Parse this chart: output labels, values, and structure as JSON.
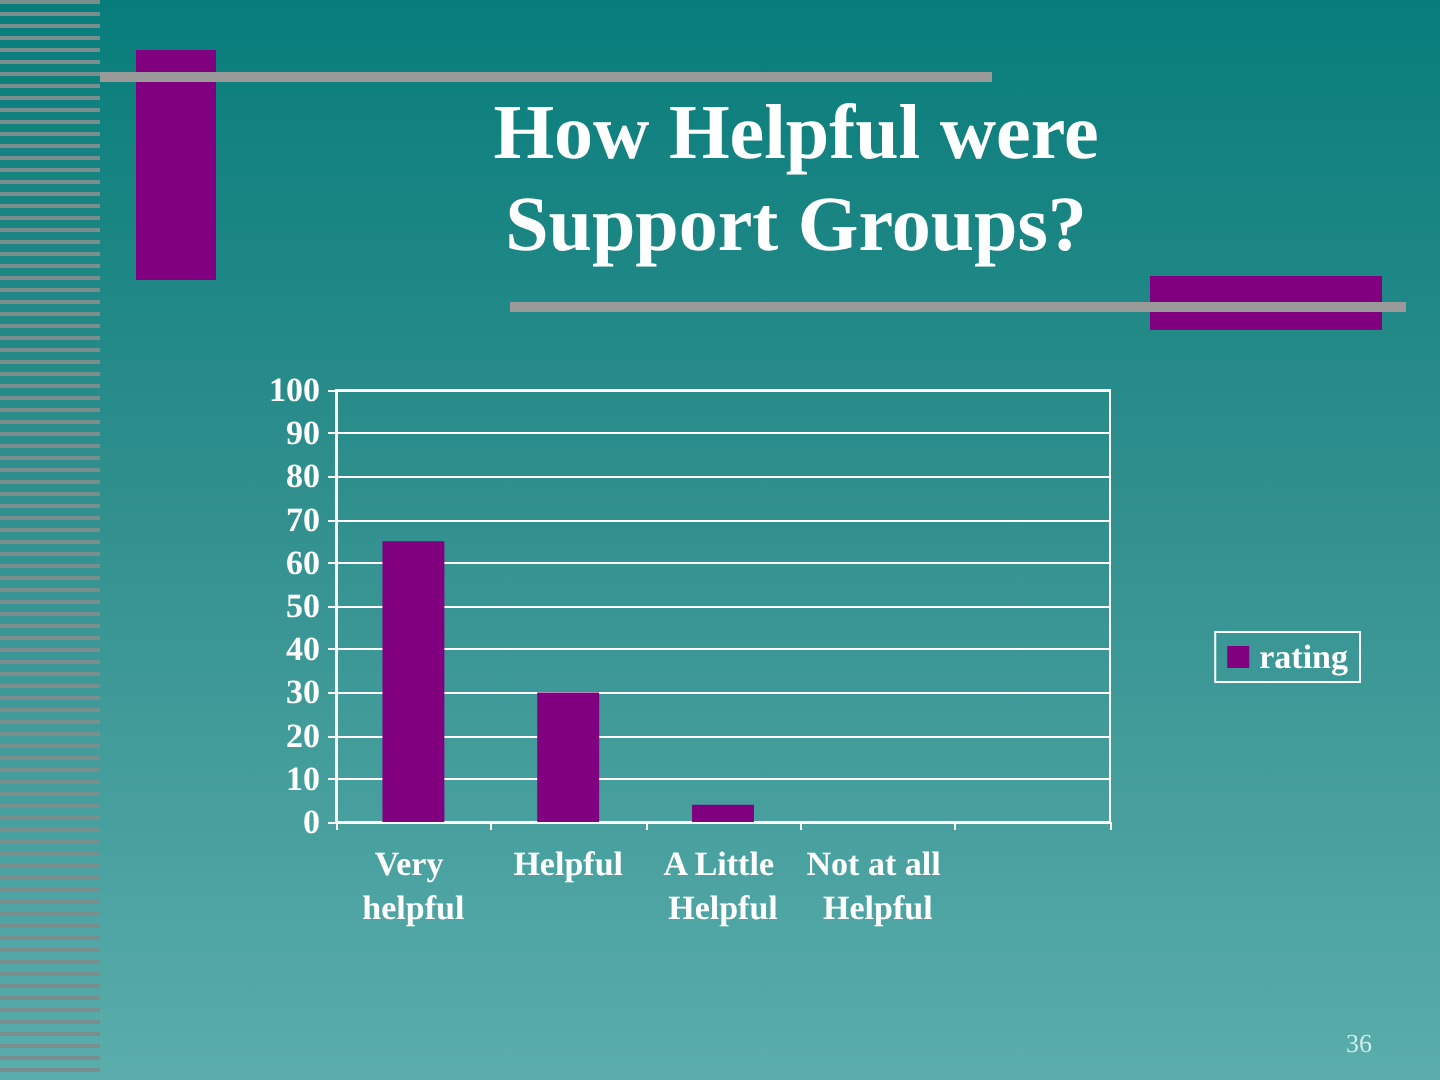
{
  "chart_data": {
    "type": "bar",
    "title": "How Helpful were Support Groups?",
    "categories": [
      "Very helpful",
      "Helpful",
      "A Little Helpful",
      "Not at all Helpful",
      null
    ],
    "series": [
      {
        "name": "rating",
        "color": "#800080",
        "values": [
          65,
          30,
          4,
          0,
          null
        ]
      }
    ],
    "ylim": [
      0,
      100
    ],
    "yticks": [
      0,
      10,
      20,
      30,
      40,
      50,
      60,
      70,
      80,
      90,
      100
    ],
    "grid": "y",
    "legend": "right",
    "annotations": [
      "36"
    ]
  }
}
